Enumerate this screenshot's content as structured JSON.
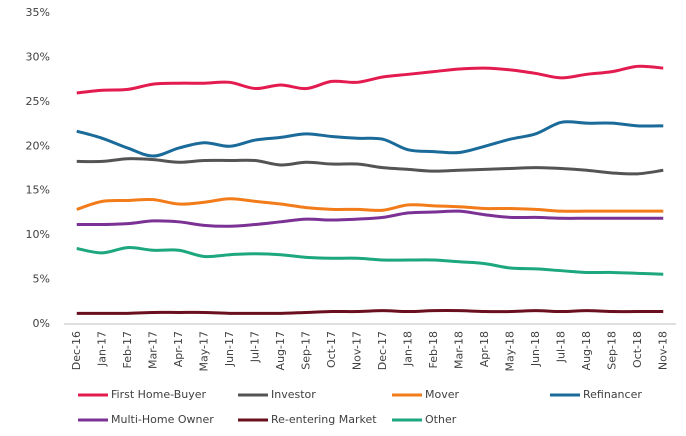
{
  "chart_data": {
    "type": "line",
    "categories": [
      "Dec-16",
      "Jan-17",
      "Feb-17",
      "Mar-17",
      "Apr-17",
      "May-17",
      "Jun-17",
      "Jul-17",
      "Aug-17",
      "Sep-17",
      "Oct-17",
      "Nov-17",
      "Dec-17",
      "Jan-18",
      "Feb-18",
      "Mar-18",
      "Apr-18",
      "May-18",
      "Jun-18",
      "Jul-18",
      "Aug-18",
      "Sep-18",
      "Oct-18",
      "Nov-18"
    ],
    "series": [
      {
        "name": "First Home-Buyer",
        "color": "#e31b4f",
        "values": [
          26.0,
          26.3,
          26.4,
          27.0,
          27.1,
          27.1,
          27.2,
          26.5,
          26.9,
          26.5,
          27.3,
          27.2,
          27.8,
          28.1,
          28.4,
          28.7,
          28.8,
          28.6,
          28.2,
          27.7,
          28.1,
          28.4,
          29.0,
          28.8
        ]
      },
      {
        "name": "Investor",
        "color": "#545454",
        "values": [
          18.3,
          18.3,
          18.6,
          18.5,
          18.2,
          18.4,
          18.4,
          18.4,
          17.9,
          18.2,
          18.0,
          18.0,
          17.6,
          17.4,
          17.2,
          17.3,
          17.4,
          17.5,
          17.6,
          17.5,
          17.3,
          17.0,
          16.9,
          17.3
        ]
      },
      {
        "name": "Mover",
        "color": "#f27c1a",
        "values": [
          12.9,
          13.8,
          13.9,
          14.0,
          13.5,
          13.7,
          14.1,
          13.8,
          13.5,
          13.1,
          12.9,
          12.9,
          12.8,
          13.4,
          13.3,
          13.2,
          13.0,
          13.0,
          12.9,
          12.7,
          12.7,
          12.7,
          12.7,
          12.7
        ]
      },
      {
        "name": "Refinancer",
        "color": "#1a6a9a",
        "values": [
          21.7,
          20.9,
          19.8,
          18.9,
          19.8,
          20.4,
          20.0,
          20.7,
          21.0,
          21.4,
          21.1,
          20.9,
          20.8,
          19.6,
          19.4,
          19.3,
          20.0,
          20.8,
          21.4,
          22.7,
          22.6,
          22.6,
          22.3,
          22.3
        ]
      },
      {
        "name": "Multi-Home Owner",
        "color": "#7b3294",
        "values": [
          11.2,
          11.2,
          11.3,
          11.6,
          11.5,
          11.1,
          11.0,
          11.2,
          11.5,
          11.8,
          11.7,
          11.8,
          12.0,
          12.5,
          12.6,
          12.7,
          12.3,
          12.0,
          12.0,
          11.9,
          11.9,
          11.9,
          11.9,
          11.9
        ]
      },
      {
        "name": "Re-entering Market",
        "color": "#6a0f1e",
        "values": [
          1.2,
          1.2,
          1.2,
          1.3,
          1.3,
          1.3,
          1.2,
          1.2,
          1.2,
          1.3,
          1.4,
          1.4,
          1.5,
          1.4,
          1.5,
          1.5,
          1.4,
          1.4,
          1.5,
          1.4,
          1.5,
          1.4,
          1.4,
          1.4
        ]
      },
      {
        "name": "Other",
        "color": "#1ca77f",
        "values": [
          8.5,
          8.0,
          8.6,
          8.3,
          8.3,
          7.6,
          7.8,
          7.9,
          7.8,
          7.5,
          7.4,
          7.4,
          7.2,
          7.2,
          7.2,
          7.0,
          6.8,
          6.3,
          6.2,
          6.0,
          5.8,
          5.8,
          5.7,
          5.6
        ]
      }
    ],
    "ylim": [
      0,
      35
    ],
    "yticks": [
      {
        "value": 0,
        "label": "0%"
      },
      {
        "value": 5,
        "label": "5%"
      },
      {
        "value": 10,
        "label": "10%"
      },
      {
        "value": 15,
        "label": "15%"
      },
      {
        "value": 20,
        "label": "20%"
      },
      {
        "value": 25,
        "label": "25%"
      },
      {
        "value": 30,
        "label": "30%"
      },
      {
        "value": 35,
        "label": "35%"
      }
    ],
    "grid": false,
    "legend": "bottom"
  }
}
